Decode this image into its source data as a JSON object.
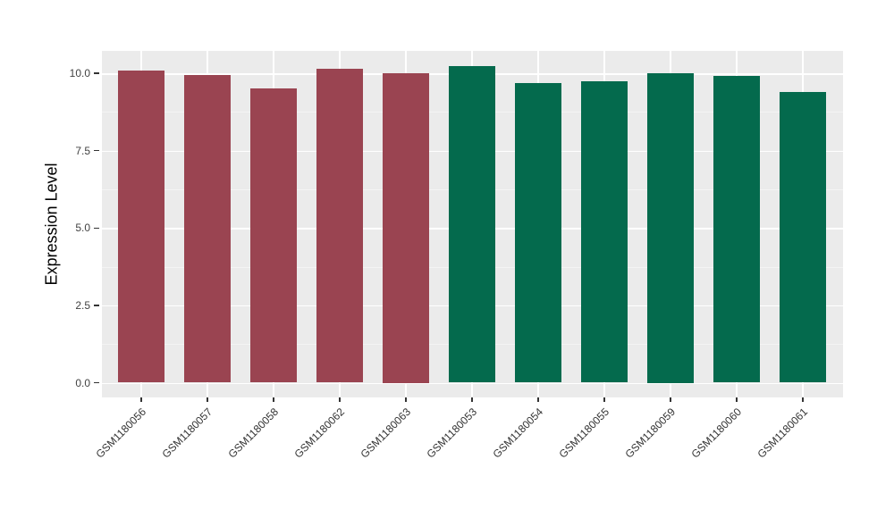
{
  "chart_data": {
    "type": "bar",
    "title": "",
    "xlabel": "",
    "ylabel": "Expression Level",
    "categories": [
      "GSM1180056",
      "GSM1180057",
      "GSM1180058",
      "GSM1180062",
      "GSM1180063",
      "GSM1180053",
      "GSM1180054",
      "GSM1180055",
      "GSM1180059",
      "GSM1180060",
      "GSM1180061"
    ],
    "values": [
      10.1,
      9.93,
      9.5,
      10.15,
      10.0,
      10.23,
      9.67,
      9.73,
      10.0,
      9.91,
      9.38
    ],
    "bar_colors": [
      "#9A4451",
      "#9A4451",
      "#9A4451",
      "#9A4451",
      "#9A4451",
      "#046A4D",
      "#046A4D",
      "#046A4D",
      "#046A4D",
      "#046A4D",
      "#046A4D"
    ],
    "ylim": [
      -0.48,
      10.72
    ],
    "yticks": [
      0.0,
      2.5,
      5.0,
      7.5,
      10.0
    ],
    "ytick_labels": [
      "0.0",
      "2.5",
      "5.0",
      "7.5",
      "10.0"
    ],
    "yticks_minor": [
      1.25,
      3.75,
      6.25,
      8.75
    ],
    "grid": true,
    "legend": "none",
    "bar_width_fraction": 0.7,
    "colors": {
      "panel_bg": "#EBEBEB",
      "grid_major": "#FFFFFF",
      "grid_minor": "#F4F4F4",
      "group_left": "#9A4451",
      "group_right": "#046A4D",
      "axis_text": "#424242",
      "axis_title": "#000000",
      "tick_mark": "#333333",
      "figure_bg": "#FFFFFF"
    }
  }
}
